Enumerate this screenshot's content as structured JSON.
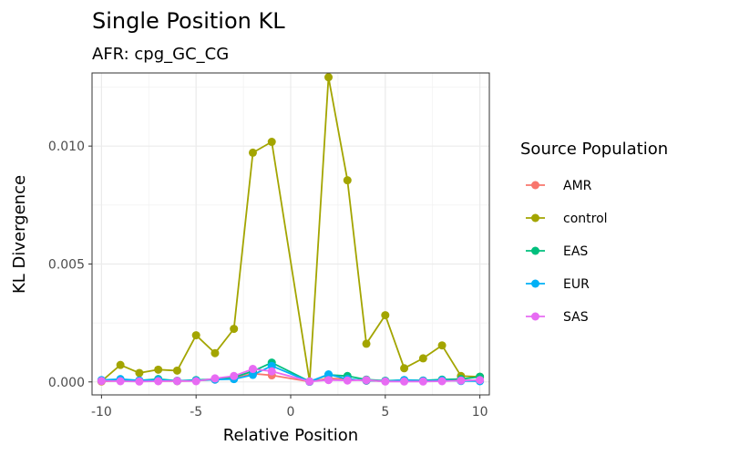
{
  "chart_data": {
    "type": "line",
    "title": "Single Position KL",
    "subtitle": "AFR: cpg_GC_CG",
    "xlabel": "Relative Position",
    "ylabel": "KL Divergence",
    "xlim": [
      -10.5,
      10.5
    ],
    "ylim": [
      -0.00055,
      0.0131
    ],
    "x_ticks": [
      -10,
      -5,
      0,
      5,
      10
    ],
    "x_tick_labels": [
      "-10",
      "-5",
      "0",
      "5",
      "10"
    ],
    "y_ticks": [
      0.0,
      0.005,
      0.01
    ],
    "y_tick_labels": [
      "0.000",
      "0.005",
      "0.010"
    ],
    "grid": true,
    "legend": {
      "title": "Source Population",
      "position": "right"
    },
    "x": [
      -10,
      -9,
      -8,
      -7,
      -6,
      -5,
      -4,
      -3,
      -2,
      -1,
      1,
      2,
      3,
      4,
      5,
      6,
      7,
      8,
      9,
      10
    ],
    "series": [
      {
        "name": "AMR",
        "color": "#F8766D",
        "values": [
          2e-05,
          5e-05,
          3e-05,
          4e-05,
          3e-05,
          5e-05,
          0.0001,
          0.00015,
          0.00035,
          0.00028,
          1e-05,
          0.00015,
          0.00012,
          5e-05,
          3e-05,
          4e-05,
          5e-05,
          8e-05,
          6e-05,
          5e-05
        ]
      },
      {
        "name": "control",
        "color": "#A3A500",
        "values": [
          3e-05,
          0.00072,
          0.00038,
          0.00052,
          0.00048,
          0.00198,
          0.00122,
          0.00225,
          0.00972,
          0.01018,
          2e-05,
          0.01292,
          0.00855,
          0.00162,
          0.00283,
          0.00058,
          0.001,
          0.00155,
          0.00025,
          0.00022
        ]
      },
      {
        "name": "EAS",
        "color": "#00BF7D",
        "values": [
          5e-05,
          8e-05,
          6e-05,
          0.00012,
          5e-05,
          8e-05,
          0.00012,
          0.0002,
          0.00045,
          0.00082,
          2e-05,
          0.0003,
          0.00025,
          0.0001,
          5e-05,
          8e-05,
          6e-05,
          0.0001,
          0.00012,
          0.00022
        ]
      },
      {
        "name": "EUR",
        "color": "#00B0F6",
        "values": [
          8e-05,
          0.00012,
          6e-05,
          9e-05,
          4e-05,
          6e-05,
          0.0001,
          0.00012,
          0.0003,
          0.00068,
          1e-05,
          0.00032,
          0.00012,
          6e-05,
          3e-05,
          8e-05,
          5e-05,
          7e-05,
          4e-05,
          3e-05
        ]
      },
      {
        "name": "SAS",
        "color": "#E76BF3",
        "values": [
          4e-05,
          3e-05,
          2e-05,
          3e-05,
          4e-05,
          3e-05,
          0.00015,
          0.00025,
          0.00055,
          0.00045,
          2e-05,
          8e-05,
          6e-05,
          8e-05,
          2e-05,
          2e-05,
          2e-05,
          3e-05,
          6e-05,
          8e-05
        ]
      }
    ]
  }
}
